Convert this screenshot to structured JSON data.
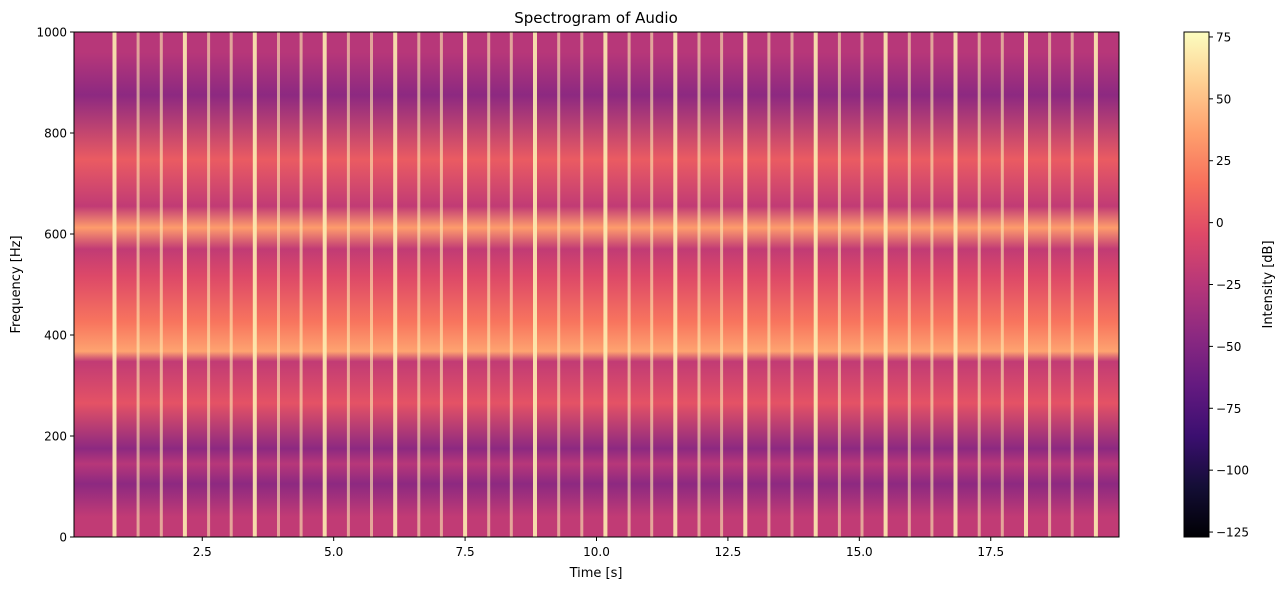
{
  "chart_data": {
    "type": "heatmap",
    "title": "Spectrogram of Audio",
    "xlabel": "Time [s]",
    "ylabel": "Frequency [Hz]",
    "xlim": [
      0.06,
      19.94
    ],
    "ylim": [
      0,
      1000
    ],
    "xticks": [
      "2.5",
      "5.0",
      "7.5",
      "10.0",
      "12.5",
      "15.0",
      "17.5"
    ],
    "xtick_values": [
      2.5,
      5.0,
      7.5,
      10.0,
      12.5,
      15.0,
      17.5
    ],
    "yticks": [
      "0",
      "200",
      "400",
      "600",
      "800",
      "1000"
    ],
    "ytick_values": [
      0,
      200,
      400,
      600,
      800,
      1000
    ],
    "colormap": "magma",
    "colorbar": {
      "label": "Intensity [dB]",
      "range": [
        -127,
        77
      ],
      "ticks": [
        "75",
        "50",
        "25",
        "0",
        "−25",
        "−50",
        "−75",
        "−100",
        "−125"
      ],
      "tick_values": [
        75,
        50,
        25,
        0,
        -25,
        -50,
        -75,
        -100,
        -125
      ]
    },
    "frequency_bands_hz": [
      {
        "from": 0,
        "to": 80,
        "db": -20
      },
      {
        "from": 80,
        "to": 130,
        "db": -45
      },
      {
        "from": 130,
        "to": 160,
        "db": -25
      },
      {
        "from": 160,
        "to": 190,
        "db": -45
      },
      {
        "from": 190,
        "to": 340,
        "db": 0
      },
      {
        "from": 340,
        "to": 355,
        "db": -20
      },
      {
        "from": 355,
        "to": 380,
        "db": 38
      },
      {
        "from": 380,
        "to": 470,
        "db": 18
      },
      {
        "from": 470,
        "to": 560,
        "db": -5
      },
      {
        "from": 560,
        "to": 580,
        "db": -20
      },
      {
        "from": 580,
        "to": 645,
        "db": 35
      },
      {
        "from": 645,
        "to": 665,
        "db": -20
      },
      {
        "from": 665,
        "to": 830,
        "db": 5
      },
      {
        "from": 830,
        "to": 920,
        "db": -45
      },
      {
        "from": 920,
        "to": 1000,
        "db": -25
      }
    ],
    "major_clicks_s": [
      0.83,
      2.17,
      3.5,
      4.83,
      6.17,
      7.5,
      8.83,
      10.17,
      11.5,
      12.83,
      14.17,
      15.5,
      16.83,
      18.17,
      19.5
    ],
    "minor_clicks_s": [
      1.28,
      1.72,
      2.62,
      3.05,
      3.95,
      4.38,
      5.28,
      5.72,
      6.62,
      7.05,
      7.95,
      8.38,
      9.28,
      9.72,
      10.62,
      11.05,
      11.95,
      12.38,
      13.28,
      13.72,
      14.62,
      15.05,
      15.95,
      16.38,
      17.28,
      17.72,
      18.62,
      19.05
    ],
    "click_db": 70
  },
  "colors": {
    "magma_stops": [
      "#000004",
      "#140e36",
      "#3b0f70",
      "#641a80",
      "#8c2981",
      "#b73779",
      "#de4968",
      "#f7705c",
      "#fe9f6d",
      "#fecf92",
      "#fcfdbf"
    ]
  }
}
